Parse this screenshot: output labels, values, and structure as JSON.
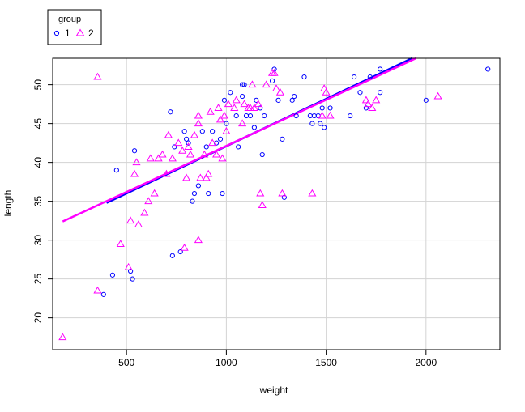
{
  "chart_data": {
    "type": "scatter",
    "title": "",
    "xlabel": "weight",
    "ylabel": "length",
    "xlim": [
      130,
      2370
    ],
    "ylim": [
      15.9,
      53.4
    ],
    "xticks": [
      500,
      1000,
      1500,
      2000
    ],
    "yticks": [
      20,
      25,
      30,
      35,
      40,
      45,
      50
    ],
    "grid": true,
    "legend": {
      "title": "group",
      "position": "top-left, outside plot"
    },
    "series": [
      {
        "name": "1",
        "marker": "circle",
        "color": "#0000ff",
        "points": [
          [
            385,
            23
          ],
          [
            430,
            25.5
          ],
          [
            450,
            39
          ],
          [
            520,
            26
          ],
          [
            530,
            25
          ],
          [
            540,
            41.5
          ],
          [
            720,
            46.5
          ],
          [
            730,
            28
          ],
          [
            740,
            42
          ],
          [
            770,
            28.5
          ],
          [
            790,
            44
          ],
          [
            800,
            43
          ],
          [
            810,
            42.5
          ],
          [
            830,
            35
          ],
          [
            840,
            36
          ],
          [
            860,
            37
          ],
          [
            880,
            44
          ],
          [
            900,
            42
          ],
          [
            910,
            36
          ],
          [
            930,
            44
          ],
          [
            950,
            42.5
          ],
          [
            970,
            43
          ],
          [
            980,
            36
          ],
          [
            990,
            48
          ],
          [
            1000,
            45
          ],
          [
            1020,
            49
          ],
          [
            1050,
            46
          ],
          [
            1060,
            42
          ],
          [
            1080,
            48.5
          ],
          [
            1080,
            50
          ],
          [
            1090,
            50
          ],
          [
            1100,
            46
          ],
          [
            1120,
            46
          ],
          [
            1140,
            44.5
          ],
          [
            1150,
            48
          ],
          [
            1170,
            47
          ],
          [
            1180,
            41
          ],
          [
            1190,
            46
          ],
          [
            1230,
            50.5
          ],
          [
            1240,
            52
          ],
          [
            1260,
            48
          ],
          [
            1280,
            43
          ],
          [
            1290,
            35.5
          ],
          [
            1330,
            48
          ],
          [
            1340,
            48.5
          ],
          [
            1350,
            46
          ],
          [
            1390,
            51
          ],
          [
            1420,
            46
          ],
          [
            1430,
            45
          ],
          [
            1440,
            46
          ],
          [
            1460,
            46
          ],
          [
            1470,
            45
          ],
          [
            1480,
            47
          ],
          [
            1490,
            44.5
          ],
          [
            1520,
            47
          ],
          [
            1620,
            46
          ],
          [
            1640,
            51
          ],
          [
            1670,
            49
          ],
          [
            1700,
            47
          ],
          [
            1720,
            51
          ],
          [
            1770,
            52
          ],
          [
            1770,
            49
          ],
          [
            2000,
            48
          ],
          [
            2310,
            52
          ]
        ],
        "fit": {
          "x": [
            400,
            1930
          ],
          "y": [
            34.8,
            53.4
          ]
        }
      },
      {
        "name": "2",
        "marker": "triangle",
        "color": "#ff00ff",
        "points": [
          [
            180,
            17.5
          ],
          [
            355,
            23.5
          ],
          [
            355,
            51
          ],
          [
            470,
            29.5
          ],
          [
            510,
            26.5
          ],
          [
            520,
            32.5
          ],
          [
            540,
            38.5
          ],
          [
            550,
            40
          ],
          [
            560,
            32
          ],
          [
            590,
            33.5
          ],
          [
            610,
            35
          ],
          [
            620,
            40.5
          ],
          [
            640,
            36
          ],
          [
            660,
            40.5
          ],
          [
            680,
            41
          ],
          [
            700,
            38.5
          ],
          [
            710,
            43.5
          ],
          [
            730,
            40.5
          ],
          [
            760,
            42.5
          ],
          [
            780,
            41.5
          ],
          [
            790,
            29
          ],
          [
            800,
            38
          ],
          [
            810,
            42
          ],
          [
            820,
            41
          ],
          [
            840,
            43.5
          ],
          [
            860,
            46
          ],
          [
            860,
            45
          ],
          [
            860,
            30
          ],
          [
            870,
            38
          ],
          [
            890,
            41
          ],
          [
            900,
            38
          ],
          [
            910,
            38.5
          ],
          [
            920,
            46.5
          ],
          [
            930,
            42.5
          ],
          [
            950,
            41
          ],
          [
            960,
            47
          ],
          [
            970,
            45.5
          ],
          [
            980,
            40.5
          ],
          [
            990,
            46
          ],
          [
            1000,
            44
          ],
          [
            1010,
            47.5
          ],
          [
            1040,
            47
          ],
          [
            1050,
            48
          ],
          [
            1080,
            45
          ],
          [
            1090,
            47.5
          ],
          [
            1110,
            47
          ],
          [
            1120,
            47
          ],
          [
            1130,
            50
          ],
          [
            1140,
            47
          ],
          [
            1160,
            47.5
          ],
          [
            1170,
            36
          ],
          [
            1180,
            34.5
          ],
          [
            1200,
            50
          ],
          [
            1230,
            51.5
          ],
          [
            1240,
            51.5
          ],
          [
            1250,
            49.5
          ],
          [
            1270,
            49
          ],
          [
            1280,
            36
          ],
          [
            1430,
            36
          ],
          [
            1480,
            46
          ],
          [
            1490,
            49.5
          ],
          [
            1500,
            49
          ],
          [
            1520,
            46
          ],
          [
            1700,
            48
          ],
          [
            1710,
            47.5
          ],
          [
            1730,
            47
          ],
          [
            1750,
            48
          ],
          [
            2060,
            48.5
          ]
        ],
        "fit": {
          "x": [
            180,
            1950
          ],
          "y": [
            32.4,
            53.4
          ]
        }
      }
    ]
  }
}
